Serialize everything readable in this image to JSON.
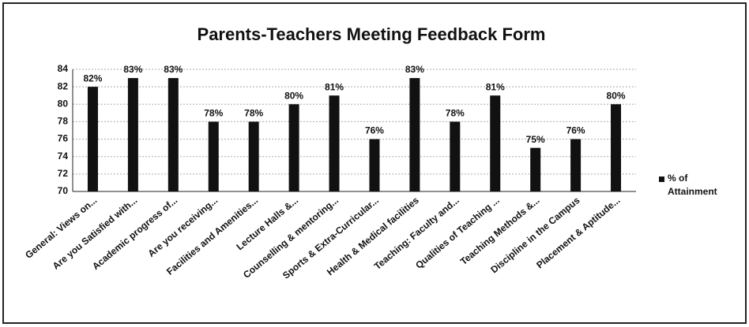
{
  "chart_data": {
    "type": "bar",
    "title": "Parents-Teachers Meeting Feedback Form",
    "categories": [
      "General: Views on...",
      "Are you Satisfied with...",
      "Academic progress of...",
      "Are you receiving...",
      "Facilities and Amenities...",
      "Lecture Halls &...",
      "Counselling & mentoring...",
      "Sports & Extra-Curricular...",
      "Health & Medical facilities",
      "Teaching: Faculty and...",
      "Qualities of Teaching ...",
      "Teaching Methods &...",
      "Discipline in the Campus",
      "Placement & Aptitude..."
    ],
    "series": [
      {
        "name": "% of Attainment",
        "color": "#111111",
        "values": [
          82,
          83,
          83,
          78,
          78,
          80,
          81,
          76,
          83,
          78,
          81,
          75,
          76,
          80
        ],
        "value_labels": [
          "82%",
          "83%",
          "83%",
          "78%",
          "78%",
          "80%",
          "81%",
          "76%",
          "83%",
          "78%",
          "81%",
          "75%",
          "76%",
          "80%"
        ]
      }
    ],
    "ylim": [
      70,
      84
    ],
    "yticks": [
      70,
      72,
      74,
      76,
      78,
      80,
      82,
      84
    ],
    "grid": true,
    "legend": "right"
  }
}
